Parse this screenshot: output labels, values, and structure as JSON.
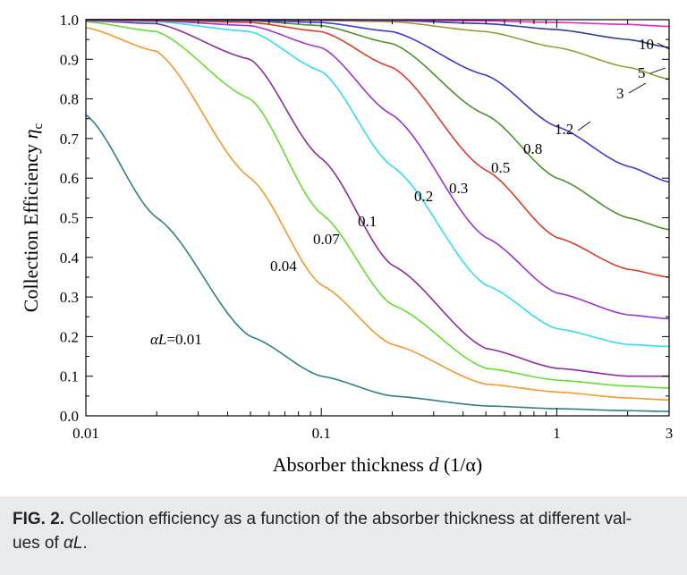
{
  "chart_data": {
    "type": "line",
    "xscale": "log",
    "xlim": [
      0.01,
      3
    ],
    "ylim": [
      0.0,
      1.0
    ],
    "xlabel": "Absorber thickness d (1/α)",
    "ylabel": "Collection Efficiency η_c",
    "x_ticks": [
      "0.01",
      "0.1",
      "1",
      "3"
    ],
    "y_ticks": [
      "0.0",
      "0.1",
      "0.2",
      "0.3",
      "0.4",
      "0.5",
      "0.6",
      "0.7",
      "0.8",
      "0.9",
      "1.0"
    ],
    "grid": false,
    "x": [
      0.01,
      0.02,
      0.05,
      0.1,
      0.2,
      0.5,
      1.0,
      2.0,
      3.0
    ],
    "series": [
      {
        "name": "αL=0.01",
        "color": "#2e7f86",
        "values": [
          0.76,
          0.5,
          0.2,
          0.1,
          0.05,
          0.025,
          0.018,
          0.013,
          0.011
        ]
      },
      {
        "name": "0.04",
        "color": "#f39a2b",
        "values": [
          0.98,
          0.92,
          0.6,
          0.33,
          0.18,
          0.08,
          0.06,
          0.045,
          0.04
        ]
      },
      {
        "name": "0.07",
        "color": "#66dd33",
        "values": [
          0.995,
          0.97,
          0.8,
          0.51,
          0.28,
          0.12,
          0.09,
          0.075,
          0.07
        ]
      },
      {
        "name": "0.1",
        "color": "#8b2c9a",
        "values": [
          0.997,
          0.99,
          0.9,
          0.65,
          0.38,
          0.17,
          0.12,
          0.1,
          0.1
        ]
      },
      {
        "name": "0.2",
        "color": "#33ddee",
        "values": [
          0.998,
          0.995,
          0.97,
          0.87,
          0.63,
          0.33,
          0.22,
          0.18,
          0.175
        ]
      },
      {
        "name": "0.3",
        "color": "#9933dd",
        "values": [
          0.999,
          0.997,
          0.985,
          0.93,
          0.76,
          0.45,
          0.31,
          0.255,
          0.245
        ]
      },
      {
        "name": "0.5",
        "color": "#e03a2a",
        "values": [
          0.999,
          0.998,
          0.993,
          0.97,
          0.88,
          0.62,
          0.45,
          0.37,
          0.35
        ]
      },
      {
        "name": "0.8",
        "color": "#4e8f2e",
        "values": [
          1.0,
          0.999,
          0.997,
          0.985,
          0.94,
          0.76,
          0.6,
          0.5,
          0.47
        ]
      },
      {
        "name": "1.2",
        "color": "#3a3ad8",
        "values": [
          1.0,
          1.0,
          0.998,
          0.993,
          0.97,
          0.86,
          0.73,
          0.63,
          0.59
        ]
      },
      {
        "name": "3",
        "color": "#9a9a35",
        "values": [
          1.0,
          1.0,
          1.0,
          0.998,
          0.995,
          0.97,
          0.93,
          0.88,
          0.85
        ]
      },
      {
        "name": "5",
        "color": "#2a3e9a",
        "values": [
          1.0,
          1.0,
          1.0,
          0.999,
          0.998,
          0.99,
          0.975,
          0.95,
          0.93
        ]
      },
      {
        "name": "10",
        "color": "#e028c8",
        "values": [
          1.0,
          1.0,
          1.0,
          1.0,
          0.999,
          0.997,
          0.993,
          0.988,
          0.983
        ]
      }
    ]
  },
  "caption": {
    "label": "FIG. 2.",
    "text": "Collection efficiency as a function of the absorber thickness at different val-",
    "text2_pre": "ues of ",
    "text2_symbol": "αL",
    "text2_post": "."
  }
}
